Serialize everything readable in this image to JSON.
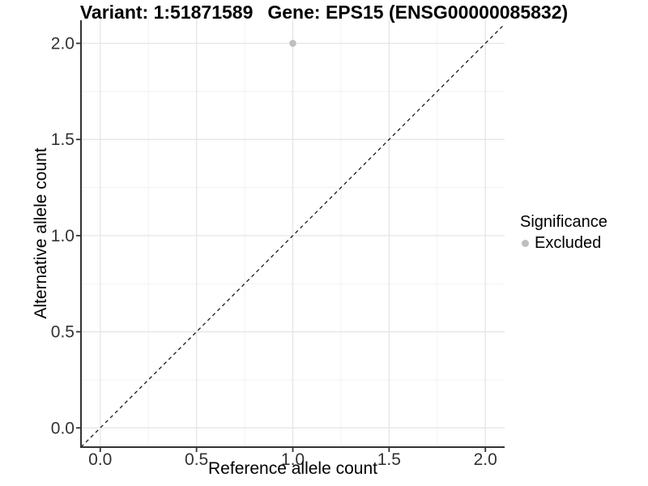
{
  "title": {
    "variant": "Variant: 1:51871589",
    "gene": "Gene: EPS15 (ENSG00000085832)"
  },
  "chart_data": {
    "type": "scatter",
    "title": "Variant: 1:51871589   Gene: EPS15 (ENSG00000085832)",
    "xlabel": "Reference allele count",
    "ylabel": "Alternative allele count",
    "xlim": [
      -0.1,
      2.1
    ],
    "ylim": [
      -0.1,
      2.12
    ],
    "xticks": [
      0.0,
      0.5,
      1.0,
      1.5,
      2.0
    ],
    "yticks": [
      0.0,
      0.5,
      1.0,
      1.5,
      2.0
    ],
    "minor_xticks": [
      0.25,
      0.75,
      1.25,
      1.75
    ],
    "minor_yticks": [
      0.25,
      0.75,
      1.25,
      1.75
    ],
    "tick_label_format": "one_decimal",
    "grid": true,
    "identity_line": {
      "style": "dashed",
      "x1": -0.1,
      "y1": -0.1,
      "x2": 2.1,
      "y2": 2.1,
      "color": "#1a1a1a"
    },
    "series": [
      {
        "name": "Excluded",
        "color": "#bebebe",
        "point_radius": 4.3,
        "points": [
          [
            1.0,
            2.0
          ]
        ]
      }
    ],
    "legend": {
      "title": "Significance",
      "position": "right",
      "entries": [
        {
          "label": "Excluded",
          "color": "#bebebe"
        }
      ]
    }
  },
  "colors": {
    "background": "#ffffff",
    "grid_major": "#e5e5e5",
    "grid_minor": "#f2f2f2",
    "axis_line": "#333333",
    "tick_text": "#333333"
  }
}
